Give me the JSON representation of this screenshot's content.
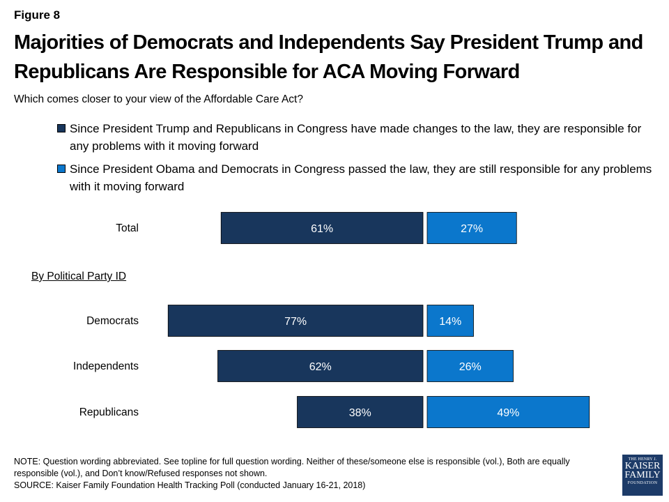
{
  "figure_label": "Figure 8",
  "title": "Majorities of Democrats and Independents Say President Trump and Republicans Are Responsible for ACA Moving Forward",
  "subtitle": "Which comes closer to your view of the Affordable Care Act?",
  "group_heading": "By Political Party ID",
  "colors": {
    "series1": "#18365c",
    "series2": "#0b77cc"
  },
  "note": "NOTE: Question wording abbreviated. See topline for full question wording. Neither of these/someone else is responsible (vol.), Both are equally responsible (vol.), and Don’t know/Refused responses not shown.",
  "source": "SOURCE: Kaiser Family Foundation Health Tracking Poll (conducted January 16-21, 2018)",
  "logo": {
    "line1": "THE HENRY J.",
    "line2": "KAISER",
    "line3": "FAMILY",
    "line4": "FOUNDATION"
  },
  "chart_data": {
    "type": "bar",
    "orientation": "diverging-horizontal",
    "categories": [
      "Total",
      "Democrats",
      "Independents",
      "Republicans"
    ],
    "series": [
      {
        "name": "Since President Trump and Republicans in Congress have made changes to the law, they are responsible for any problems with it moving forward",
        "values": [
          61,
          77,
          62,
          38
        ]
      },
      {
        "name": "Since President Obama and Democrats in Congress passed the law, they are still responsible for any problems with it moving forward",
        "values": [
          27,
          14,
          26,
          49
        ]
      }
    ],
    "value_suffix": "%",
    "legend": "top",
    "grid": false
  }
}
